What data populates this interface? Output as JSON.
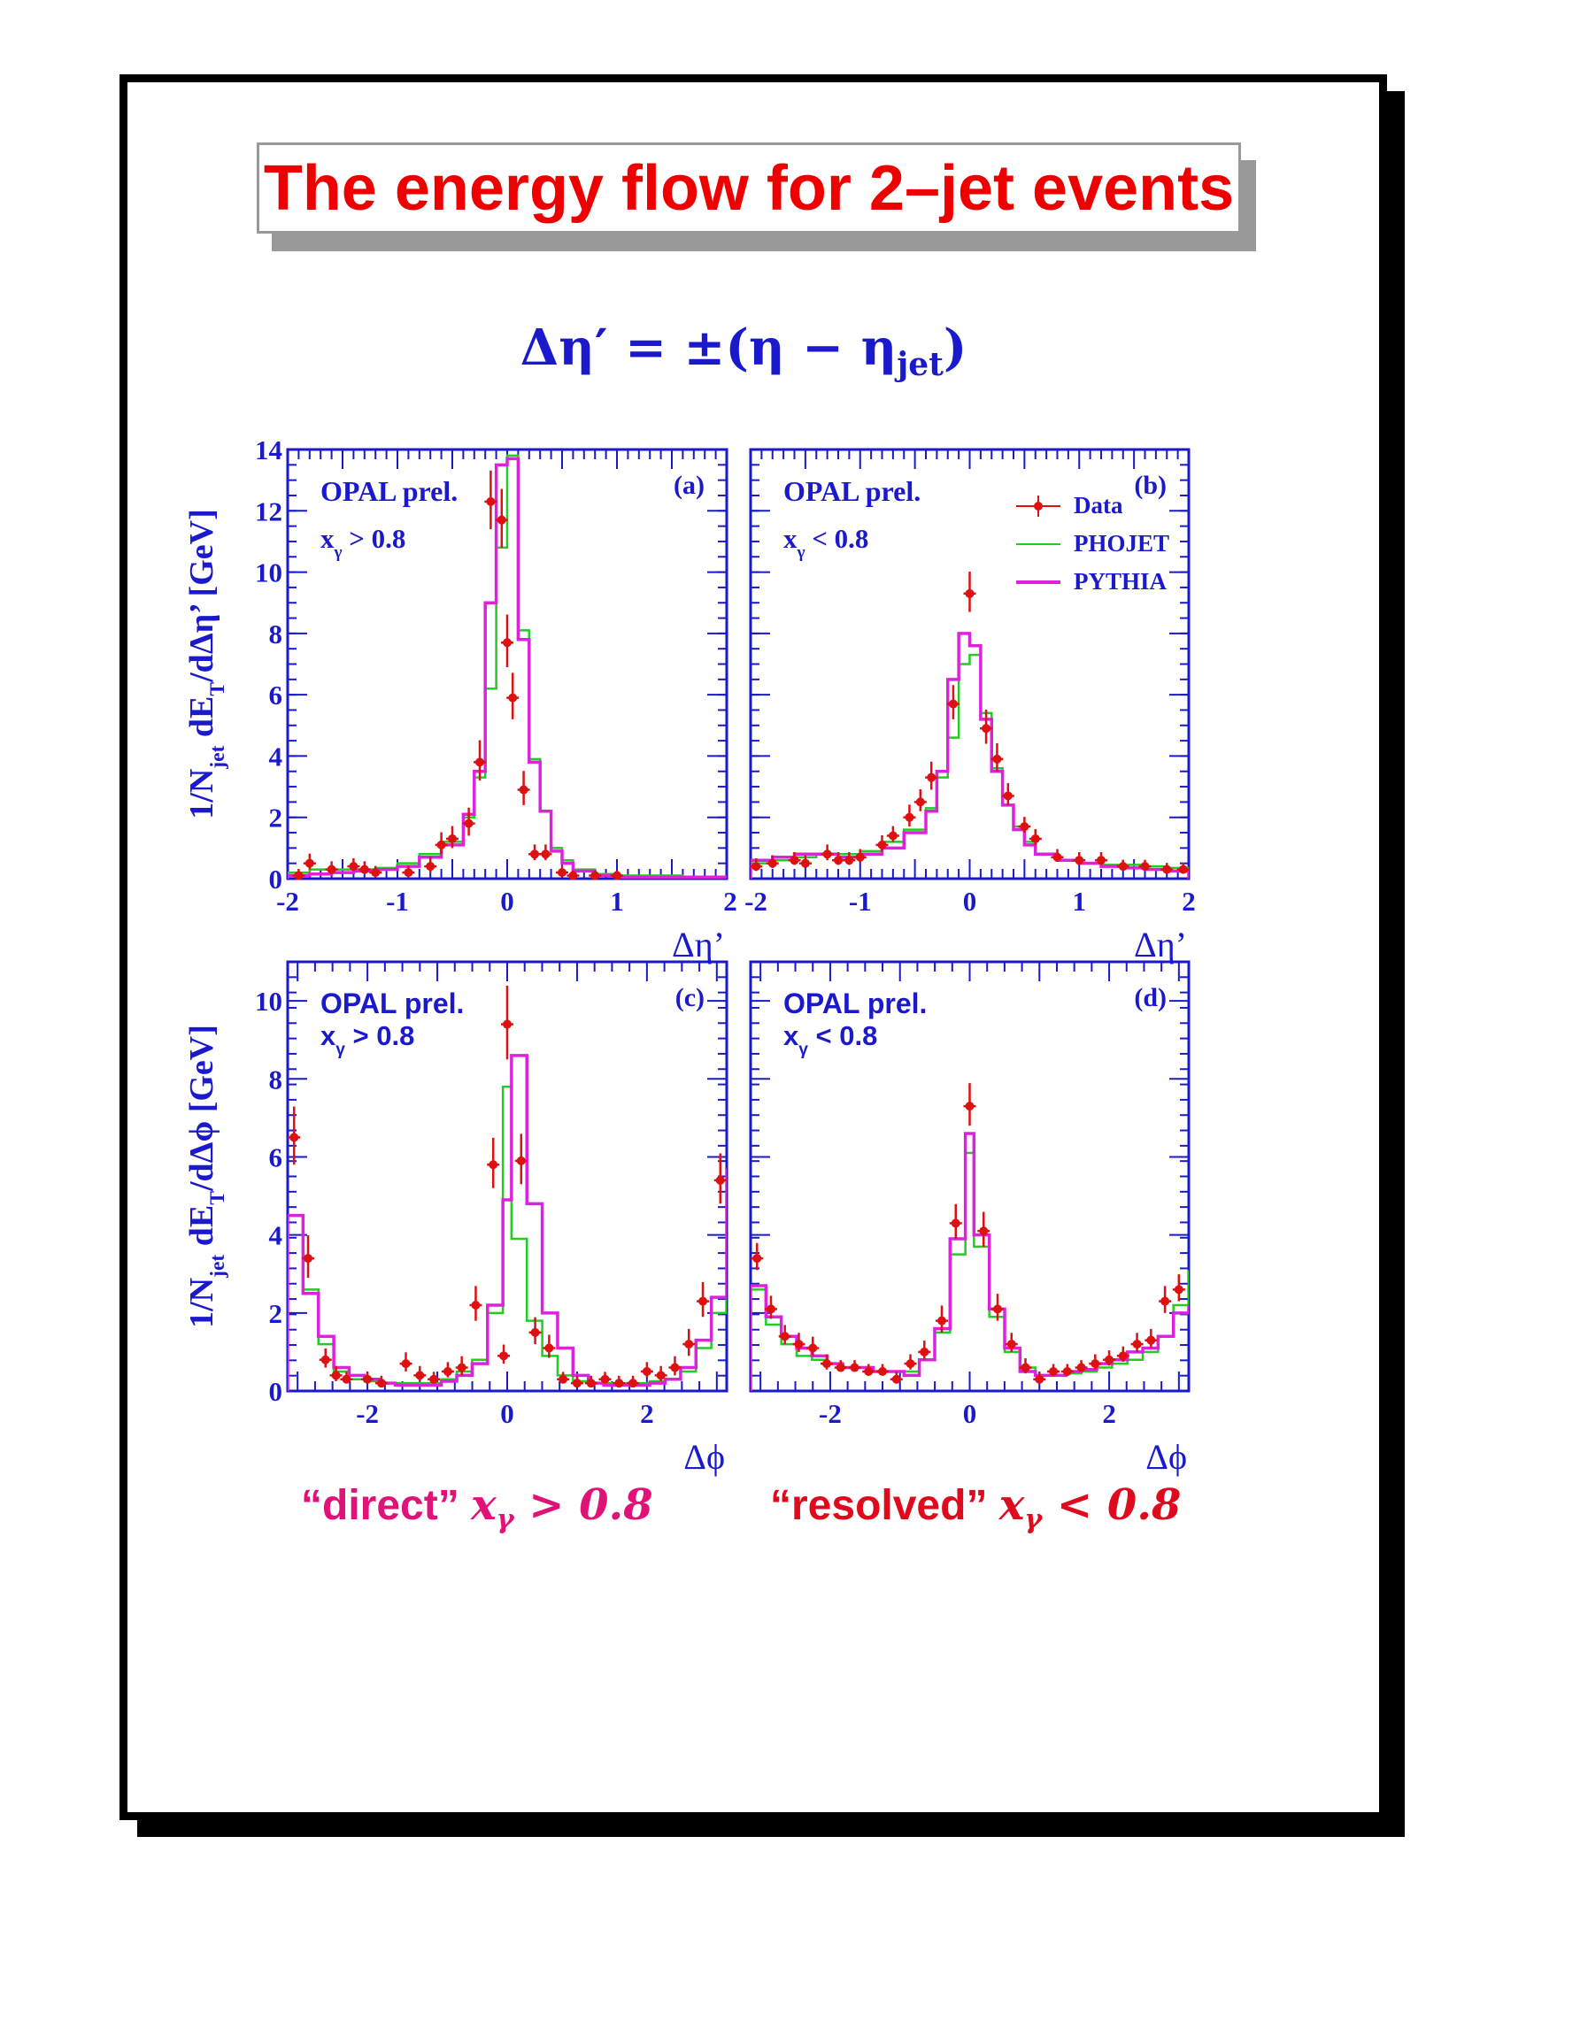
{
  "title": "The energy flow for 2–jet events",
  "formula": {
    "lhs": "Δη′ = ±(η − η",
    "sub": "jet",
    "rhs": ")"
  },
  "captions": {
    "direct": {
      "label": "“direct”",
      "math": "x",
      "sub": "γ",
      "cond": " > 0.8"
    },
    "resolved": {
      "label": "“resolved”",
      "math": "x",
      "sub": "γ",
      "cond": " < 0.8"
    }
  },
  "colors": {
    "data": "#dd1111",
    "phojet": "#22cc22",
    "pythia": "#dd22dd",
    "axis": "#1a1acc",
    "title": "#ee0000"
  },
  "legend": {
    "position": "top-right of panel (b)",
    "entries": [
      "Data",
      "PHOJET",
      "PYTHIA"
    ]
  },
  "chart_data": [
    {
      "type": "line",
      "panel": "(a)",
      "label": "OPAL prel.",
      "cut": "x_γ > 0.8",
      "ylabel": "1/N_jet dE_T/dΔη’ [GeV]",
      "xlabel": "Δη’",
      "xlim": [
        -2,
        2
      ],
      "ylim": [
        0,
        14
      ],
      "xticks": [
        -2,
        -1,
        0,
        1,
        2
      ],
      "yticks": [
        0,
        2,
        4,
        6,
        8,
        10,
        12,
        14
      ],
      "bin_edges": [
        -2.0,
        -1.8,
        -1.6,
        -1.4,
        -1.2,
        -1.0,
        -0.8,
        -0.6,
        -0.4,
        -0.3,
        -0.2,
        -0.1,
        0.0,
        0.1,
        0.2,
        0.3,
        0.4,
        0.5,
        0.6,
        0.8,
        1.0,
        1.2,
        1.4,
        1.6,
        1.8,
        2.0
      ],
      "series": [
        {
          "name": "PHOJET",
          "values": [
            0.2,
            0.3,
            0.3,
            0.3,
            0.35,
            0.5,
            0.8,
            1.2,
            2.0,
            3.3,
            6.2,
            10.8,
            13.8,
            8.1,
            3.9,
            2.2,
            1.0,
            0.6,
            0.3,
            0.15,
            0.1,
            0.1,
            0.1,
            0.05,
            0.05
          ]
        },
        {
          "name": "PYTHIA",
          "values": [
            0.1,
            0.15,
            0.2,
            0.25,
            0.3,
            0.4,
            0.7,
            1.1,
            2.1,
            3.5,
            9.0,
            13.5,
            13.7,
            7.8,
            3.8,
            2.2,
            0.9,
            0.5,
            0.25,
            0.1,
            0.05,
            0.05,
            0.05,
            0.05,
            0.05
          ]
        },
        {
          "name": "Data",
          "x": [
            -1.9,
            -1.8,
            -1.6,
            -1.4,
            -1.3,
            -1.2,
            -0.9,
            -0.7,
            -0.6,
            -0.5,
            -0.35,
            -0.25,
            -0.15,
            -0.05,
            0.0,
            0.05,
            0.15,
            0.25,
            0.35,
            0.5,
            0.6,
            0.8,
            1.0
          ],
          "y": [
            0.1,
            0.5,
            0.3,
            0.4,
            0.3,
            0.2,
            0.2,
            0.4,
            1.1,
            1.3,
            1.8,
            3.8,
            12.3,
            11.7,
            7.7,
            5.9,
            2.9,
            0.8,
            0.8,
            0.2,
            0.1,
            0.1,
            0.1
          ],
          "err": [
            0.1,
            0.2,
            0.15,
            0.15,
            0.15,
            0.1,
            0.1,
            0.2,
            0.3,
            0.3,
            0.4,
            0.6,
            0.9,
            0.9,
            0.8,
            0.7,
            0.5,
            0.2,
            0.2,
            0.1,
            0.05,
            0.05,
            0.05
          ]
        }
      ]
    },
    {
      "type": "line",
      "panel": "(b)",
      "label": "OPAL prel.",
      "cut": "x_γ < 0.8",
      "xlabel": "Δη’",
      "xlim": [
        -2,
        2
      ],
      "ylim": [
        0,
        14
      ],
      "xticks": [
        -2,
        -1,
        0,
        1,
        2
      ],
      "bin_edges": [
        -2.0,
        -1.8,
        -1.6,
        -1.4,
        -1.2,
        -1.0,
        -0.8,
        -0.6,
        -0.4,
        -0.3,
        -0.2,
        -0.1,
        0.0,
        0.1,
        0.2,
        0.3,
        0.4,
        0.5,
        0.6,
        0.8,
        1.0,
        1.2,
        1.4,
        1.6,
        1.8,
        2.0
      ],
      "series": [
        {
          "name": "PHOJET",
          "values": [
            0.5,
            0.6,
            0.7,
            0.8,
            0.8,
            0.9,
            1.2,
            1.6,
            2.3,
            3.3,
            4.6,
            7.0,
            7.3,
            5.4,
            3.6,
            2.4,
            1.7,
            1.2,
            0.8,
            0.6,
            0.5,
            0.45,
            0.45,
            0.4,
            0.35
          ]
        },
        {
          "name": "PYTHIA",
          "values": [
            0.6,
            0.7,
            0.8,
            0.8,
            0.7,
            0.8,
            1.0,
            1.5,
            2.2,
            3.5,
            6.5,
            8.0,
            7.6,
            5.2,
            3.5,
            2.4,
            1.6,
            1.1,
            0.8,
            0.6,
            0.5,
            0.4,
            0.35,
            0.3,
            0.25
          ]
        },
        {
          "name": "Data",
          "x": [
            -1.95,
            -1.8,
            -1.6,
            -1.5,
            -1.3,
            -1.2,
            -1.1,
            -1.0,
            -0.8,
            -0.7,
            -0.55,
            -0.45,
            -0.35,
            -0.15,
            0.0,
            0.15,
            0.25,
            0.35,
            0.5,
            0.6,
            0.8,
            1.0,
            1.2,
            1.4,
            1.6,
            1.8,
            1.95
          ],
          "y": [
            0.4,
            0.5,
            0.6,
            0.5,
            0.8,
            0.6,
            0.6,
            0.7,
            1.1,
            1.4,
            2.0,
            2.5,
            3.3,
            5.7,
            9.3,
            4.9,
            3.9,
            2.7,
            1.7,
            1.3,
            0.7,
            0.6,
            0.6,
            0.4,
            0.4,
            0.3,
            0.3
          ],
          "err": [
            0.15,
            0.15,
            0.15,
            0.15,
            0.2,
            0.15,
            0.15,
            0.15,
            0.2,
            0.2,
            0.3,
            0.3,
            0.4,
            0.5,
            0.6,
            0.5,
            0.4,
            0.3,
            0.2,
            0.2,
            0.15,
            0.15,
            0.15,
            0.1,
            0.1,
            0.1,
            0.1
          ]
        }
      ]
    },
    {
      "type": "line",
      "panel": "(c)",
      "label": "OPAL prel.",
      "cut": "x_γ > 0.8",
      "ylabel": "1/N_jet dE_T/dΔϕ [GeV]",
      "xlabel": "Δϕ",
      "xlim": [
        -3.1416,
        3.1416
      ],
      "ylim": [
        0,
        11
      ],
      "xticks": [
        -2,
        0,
        2
      ],
      "yticks": [
        0,
        2,
        4,
        6,
        8,
        10
      ],
      "bin_edges": [
        -3.1416,
        -2.9216,
        -2.7016,
        -2.4816,
        -2.2616,
        -2.0416,
        -1.8216,
        -1.6016,
        -1.3816,
        -1.1616,
        -0.9416,
        -0.7216,
        -0.5016,
        -0.2816,
        -0.0616,
        0.0616,
        0.2816,
        0.5016,
        0.7216,
        0.9416,
        1.1616,
        1.3816,
        1.6016,
        1.8216,
        2.0416,
        2.2616,
        2.4816,
        2.7016,
        2.9216,
        3.1416
      ],
      "series": [
        {
          "name": "PHOJET",
          "values": [
            4.5,
            2.6,
            1.2,
            0.5,
            0.3,
            0.25,
            0.2,
            0.2,
            0.2,
            0.2,
            0.3,
            0.5,
            0.8,
            2.0,
            7.8,
            3.9,
            1.8,
            0.9,
            0.4,
            0.25,
            0.2,
            0.2,
            0.2,
            0.2,
            0.25,
            0.3,
            0.5,
            1.1,
            2.0,
            4.6
          ]
        },
        {
          "name": "PYTHIA",
          "values": [
            4.5,
            2.5,
            1.4,
            0.6,
            0.4,
            0.3,
            0.2,
            0.15,
            0.15,
            0.15,
            0.25,
            0.4,
            0.7,
            2.2,
            4.9,
            8.6,
            4.8,
            2.0,
            1.1,
            0.4,
            0.2,
            0.15,
            0.15,
            0.15,
            0.2,
            0.3,
            0.6,
            1.3,
            2.4,
            5.7
          ]
        },
        {
          "name": "Data",
          "x": [
            -3.05,
            -2.85,
            -2.6,
            -2.45,
            -2.3,
            -2.0,
            -1.8,
            -1.45,
            -1.25,
            -1.05,
            -0.85,
            -0.65,
            -0.45,
            -0.2,
            -0.05,
            0.0,
            0.2,
            0.4,
            0.6,
            0.8,
            1.0,
            1.2,
            1.4,
            1.6,
            1.8,
            2.0,
            2.2,
            2.4,
            2.6,
            2.8,
            3.05
          ],
          "y": [
            6.5,
            3.4,
            0.8,
            0.4,
            0.3,
            0.3,
            0.2,
            0.7,
            0.4,
            0.3,
            0.5,
            0.6,
            2.2,
            5.8,
            0.9,
            9.4,
            5.9,
            1.5,
            1.1,
            0.3,
            0.2,
            0.2,
            0.3,
            0.2,
            0.2,
            0.5,
            0.4,
            0.6,
            1.2,
            2.3,
            5.4
          ],
          "err": [
            0.7,
            0.5,
            0.2,
            0.15,
            0.1,
            0.1,
            0.1,
            0.2,
            0.15,
            0.1,
            0.15,
            0.2,
            0.4,
            0.6,
            0.2,
            0.9,
            0.6,
            0.3,
            0.25,
            0.1,
            0.1,
            0.1,
            0.1,
            0.1,
            0.1,
            0.15,
            0.15,
            0.2,
            0.3,
            0.4,
            0.6
          ]
        }
      ]
    },
    {
      "type": "line",
      "panel": "(d)",
      "label": "OPAL prel.",
      "cut": "x_γ < 0.8",
      "xlabel": "Δϕ",
      "xlim": [
        -3.1416,
        3.1416
      ],
      "ylim": [
        0,
        11
      ],
      "xticks": [
        -2,
        0,
        2
      ],
      "bin_edges": [
        -3.1416,
        -2.9216,
        -2.7016,
        -2.4816,
        -2.2616,
        -2.0416,
        -1.8216,
        -1.6016,
        -1.3816,
        -1.1616,
        -0.9416,
        -0.7216,
        -0.5016,
        -0.2816,
        -0.0616,
        0.0616,
        0.2816,
        0.5016,
        0.7216,
        0.9416,
        1.1616,
        1.3816,
        1.6016,
        1.8216,
        2.0416,
        2.2616,
        2.4816,
        2.7016,
        2.9216,
        3.1416
      ],
      "series": [
        {
          "name": "PHOJET",
          "values": [
            2.6,
            1.7,
            1.2,
            0.9,
            0.8,
            0.7,
            0.6,
            0.6,
            0.5,
            0.5,
            0.5,
            0.8,
            1.5,
            3.5,
            6.1,
            3.7,
            1.9,
            1.0,
            0.6,
            0.4,
            0.4,
            0.45,
            0.5,
            0.6,
            0.7,
            0.8,
            1.0,
            1.4,
            2.2,
            3.1
          ]
        },
        {
          "name": "PYTHIA",
          "values": [
            2.7,
            1.9,
            1.4,
            1.1,
            0.9,
            0.7,
            0.6,
            0.6,
            0.5,
            0.5,
            0.4,
            0.8,
            1.6,
            3.9,
            6.6,
            4.0,
            2.1,
            1.1,
            0.5,
            0.4,
            0.4,
            0.5,
            0.55,
            0.7,
            0.8,
            1.0,
            1.1,
            1.4,
            2.0,
            2.2
          ]
        },
        {
          "name": "Data",
          "x": [
            -3.05,
            -2.85,
            -2.65,
            -2.45,
            -2.25,
            -2.05,
            -1.85,
            -1.65,
            -1.45,
            -1.25,
            -1.05,
            -0.85,
            -0.65,
            -0.4,
            -0.2,
            0.0,
            0.2,
            0.4,
            0.6,
            0.8,
            1.0,
            1.2,
            1.4,
            1.6,
            1.8,
            2.0,
            2.2,
            2.4,
            2.6,
            2.8,
            3.0
          ],
          "y": [
            3.4,
            2.1,
            1.4,
            1.2,
            1.1,
            0.7,
            0.6,
            0.6,
            0.5,
            0.5,
            0.3,
            0.7,
            1.0,
            1.8,
            4.3,
            7.3,
            4.1,
            2.1,
            1.2,
            0.6,
            0.3,
            0.5,
            0.5,
            0.6,
            0.7,
            0.8,
            0.9,
            1.2,
            1.3,
            2.3,
            2.6
          ],
          "err": [
            0.3,
            0.25,
            0.2,
            0.2,
            0.2,
            0.15,
            0.1,
            0.1,
            0.1,
            0.1,
            0.1,
            0.15,
            0.2,
            0.3,
            0.4,
            0.5,
            0.4,
            0.3,
            0.2,
            0.15,
            0.1,
            0.1,
            0.1,
            0.1,
            0.15,
            0.15,
            0.15,
            0.2,
            0.2,
            0.3,
            0.3
          ]
        }
      ]
    }
  ]
}
